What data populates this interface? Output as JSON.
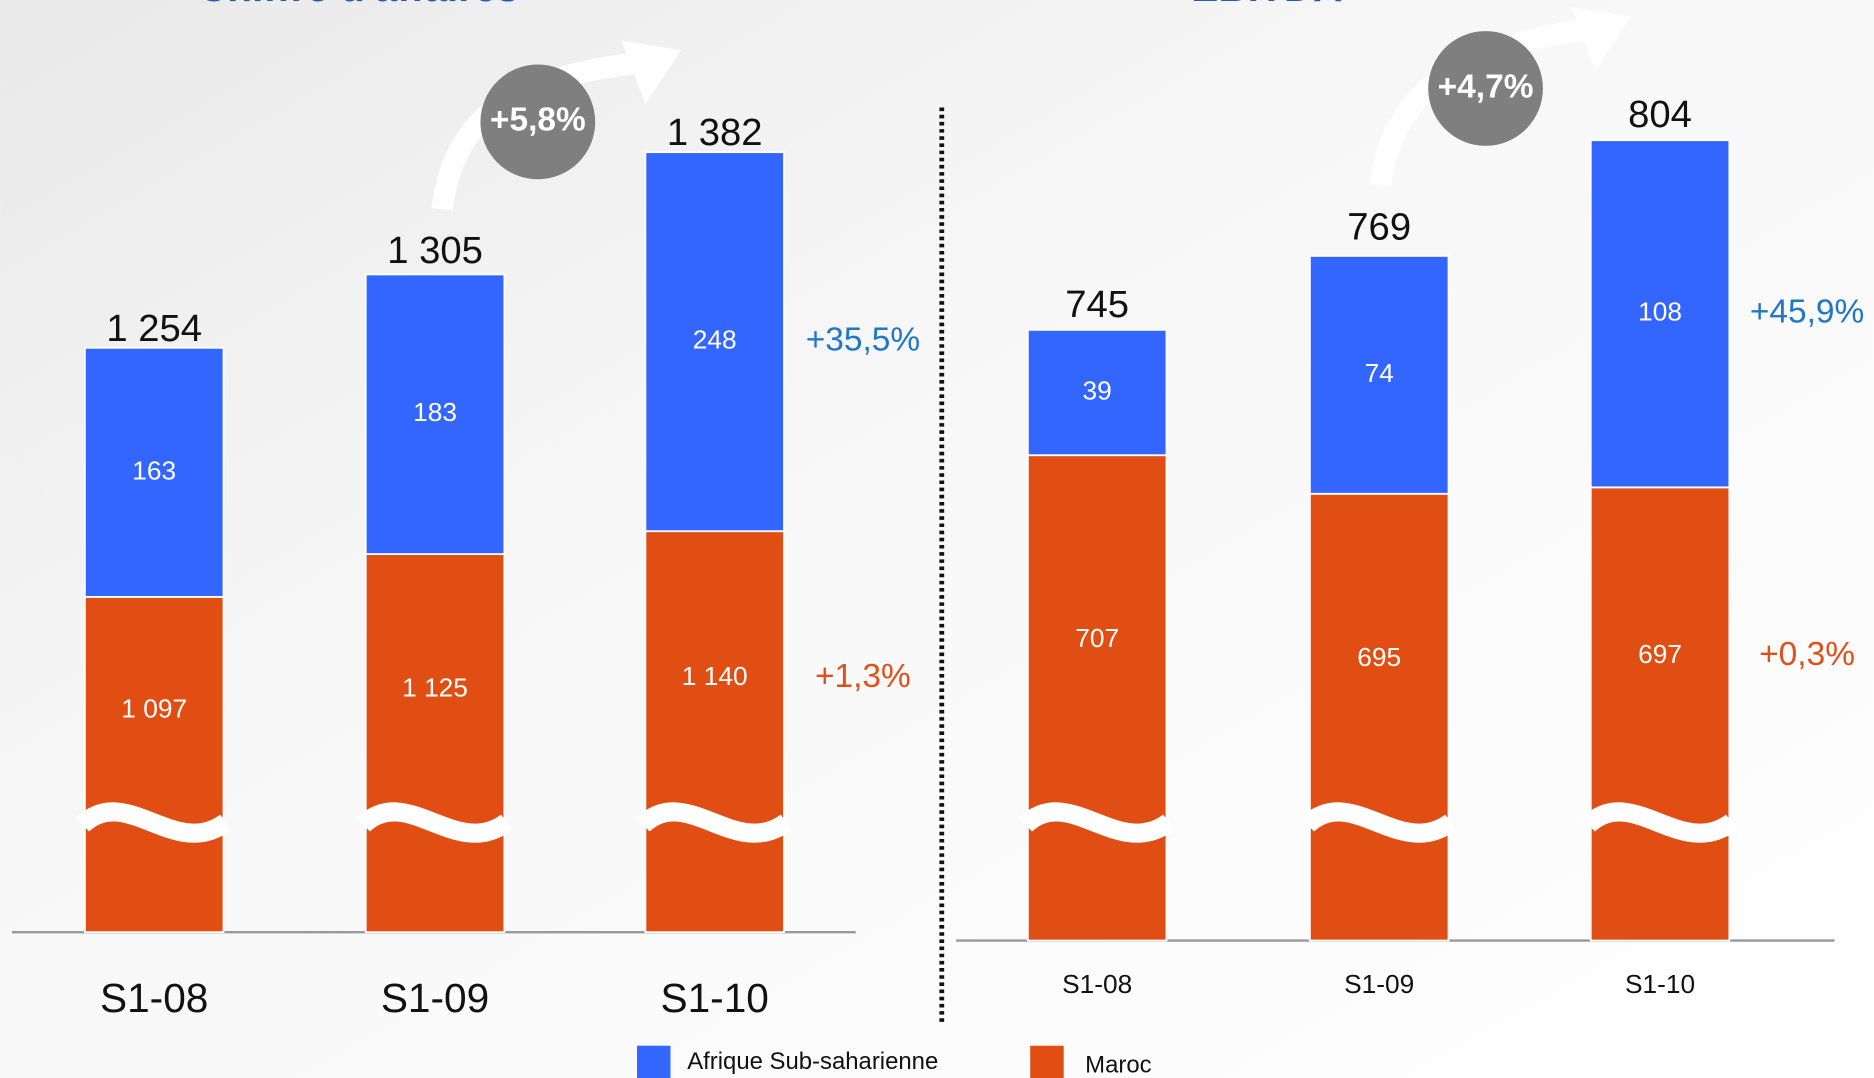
{
  "chart_data": [
    {
      "type": "bar",
      "stacked": true,
      "title": "Chiffre d'affaires",
      "categories": [
        "S1-08",
        "S1-09",
        "S1-10"
      ],
      "series": [
        {
          "name": "Maroc",
          "color": "#e04e14",
          "values": [
            1097,
            1125,
            1140
          ],
          "value_labels": [
            "1 097",
            "1 125",
            "1 140"
          ],
          "growth_label": "+1,3%",
          "growth_color": "#e0501a"
        },
        {
          "name": "Afrique Sub-saharienne",
          "color": "#3366ff",
          "values": [
            163,
            183,
            248
          ],
          "growth_label": "+35,5%",
          "growth_color": "#1f77c8"
        }
      ],
      "totals": [
        1254,
        1305,
        1382
      ],
      "total_labels": [
        "1 254",
        "1 305",
        "1 382"
      ],
      "total_growth_label": "+5,8%"
    },
    {
      "type": "bar",
      "stacked": true,
      "title": "EBITDA",
      "categories": [
        "S1-08",
        "S1-09",
        "S1-10"
      ],
      "series": [
        {
          "color": "#e04e14",
          "values": [
            707,
            695,
            697
          ],
          "growth_label": "+0,3%",
          "growth_color": "#e0501a"
        },
        {
          "color": "#3366ff",
          "values": [
            39,
            74,
            108
          ],
          "growth_label": "+45,9%",
          "growth_color": "#1f77c8"
        }
      ],
      "totals": [
        745,
        769,
        804
      ],
      "total_growth_label": "+4,7%"
    }
  ]
}
